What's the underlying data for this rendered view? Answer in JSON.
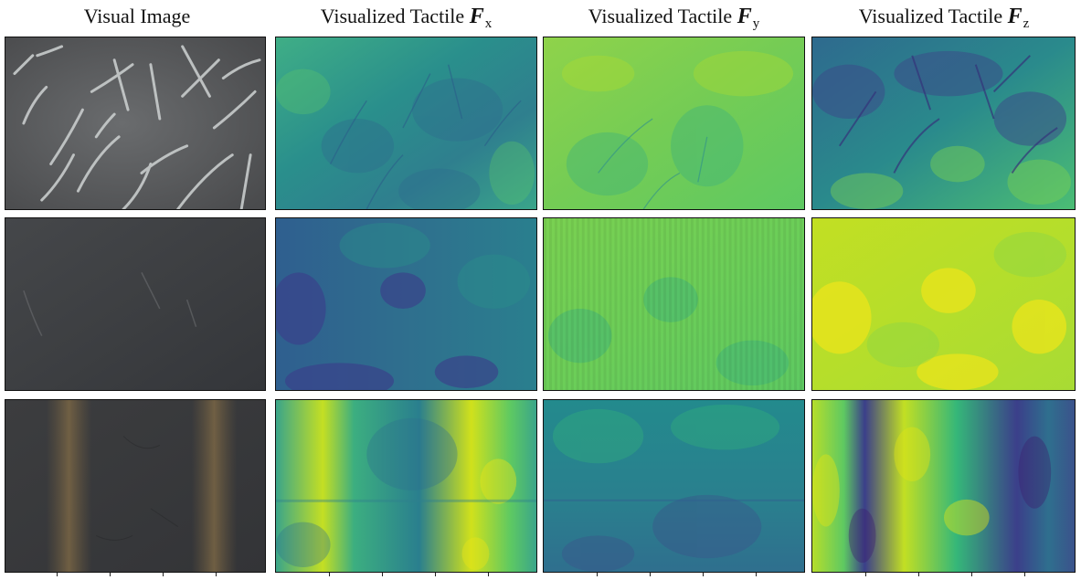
{
  "columns": [
    {
      "label": "Visual Image",
      "symbol": "",
      "subscript": ""
    },
    {
      "label": "Visualized Tactile ",
      "symbol": "F",
      "subscript": "x"
    },
    {
      "label": "Visualized Tactile ",
      "symbol": "F",
      "subscript": "y"
    },
    {
      "label": "Visualized Tactile ",
      "symbol": "F",
      "subscript": "z"
    }
  ],
  "rows": [
    {
      "texture": "fabric with scattered light fibers"
    },
    {
      "texture": "smooth dark surface"
    },
    {
      "texture": "dark leather with two vertical bands"
    }
  ],
  "colors": {
    "viridis_dark": "#3b1d6e",
    "viridis_blue": "#2f5f8f",
    "viridis_teal": "#21908d",
    "viridis_green": "#5ec962",
    "viridis_yellow": "#dde318",
    "photo_gray": "#5b5d5f",
    "photo_dark": "#3a3b3d"
  }
}
